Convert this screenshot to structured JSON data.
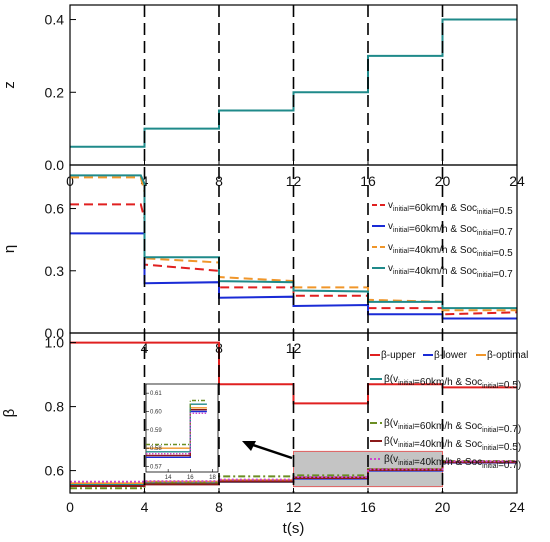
{
  "chart_data": [
    {
      "panel": "top",
      "type": "line",
      "ylabel": "z",
      "xlim": [
        0,
        24
      ],
      "ylim": [
        0,
        0.44
      ],
      "xticks": [
        "0",
        "4",
        "8",
        "12",
        "16",
        "20",
        "24"
      ],
      "yticks": [
        "0.0",
        "0.2",
        "0.4"
      ],
      "step_boundaries": [
        4,
        8,
        12,
        16,
        20
      ],
      "series": [
        {
          "color": "#1f8a8a",
          "style": "solid",
          "x": [
            0,
            4,
            4,
            8,
            8,
            12,
            12,
            16,
            16,
            20,
            20,
            24
          ],
          "y": [
            0.05,
            0.05,
            0.1,
            0.1,
            0.15,
            0.15,
            0.2,
            0.2,
            0.3,
            0.3,
            0.4,
            0.4
          ]
        }
      ]
    },
    {
      "panel": "middle",
      "type": "line",
      "ylabel": "η",
      "xlim": [
        0,
        24
      ],
      "ylim": [
        0,
        0.81
      ],
      "yticks": [
        "0.0",
        "0.3",
        "0.6"
      ],
      "legend": [
        {
          "pre": "v",
          "sub1": "initial",
          "mid": "=60km/h & Soc",
          "sub2": "initial",
          "post": "=0.5",
          "color": "#e02020",
          "style": "dashed"
        },
        {
          "pre": "v",
          "sub1": "initial",
          "mid": "=60km/h & Soc",
          "sub2": "initial",
          "post": "=0.7",
          "color": "#1a2bd6",
          "style": "solid"
        },
        {
          "pre": "v",
          "sub1": "initial",
          "mid": "=40km/h & Soc",
          "sub2": "initial",
          "post": "=0.5",
          "color": "#f0962a",
          "style": "dashed"
        },
        {
          "pre": "v",
          "sub1": "initial",
          "mid": "=40km/h & Soc",
          "sub2": "initial",
          "post": "=0.7",
          "color": "#1f8a8a",
          "style": "solid"
        }
      ],
      "series": [
        {
          "color": "#e02020",
          "style": "dashed",
          "x": [
            0,
            3.8,
            4,
            4,
            8,
            8,
            12,
            12,
            16,
            16,
            20,
            20,
            24
          ],
          "y": [
            0.62,
            0.62,
            0.55,
            0.33,
            0.3,
            0.22,
            0.22,
            0.18,
            0.18,
            0.12,
            0.12,
            0.09,
            0.1
          ]
        },
        {
          "color": "#1a2bd6",
          "style": "solid",
          "x": [
            0,
            4,
            4,
            8,
            8,
            12,
            12,
            16,
            16,
            20,
            20,
            24
          ],
          "y": [
            0.48,
            0.48,
            0.24,
            0.245,
            0.17,
            0.175,
            0.13,
            0.135,
            0.09,
            0.09,
            0.07,
            0.07
          ]
        },
        {
          "color": "#f0962a",
          "style": "dashed",
          "x": [
            0,
            3.8,
            4,
            4,
            8,
            8,
            12,
            12,
            16,
            16,
            20,
            20,
            24
          ],
          "y": [
            0.75,
            0.75,
            0.68,
            0.36,
            0.34,
            0.27,
            0.25,
            0.22,
            0.22,
            0.16,
            0.15,
            0.11,
            0.11
          ]
        },
        {
          "color": "#1f8a8a",
          "style": "solid",
          "x": [
            0,
            3.8,
            4,
            4,
            8,
            8,
            12,
            12,
            16,
            16,
            20,
            20,
            24
          ],
          "y": [
            0.76,
            0.76,
            0.72,
            0.365,
            0.365,
            0.25,
            0.245,
            0.205,
            0.2,
            0.15,
            0.15,
            0.12,
            0.12
          ]
        }
      ]
    },
    {
      "panel": "bottom",
      "type": "line",
      "ylabel": "β",
      "xlabel": "t(s)",
      "xlim": [
        0,
        24
      ],
      "ylim": [
        0.53,
        1.03
      ],
      "xticks": [
        "0",
        "4",
        "8",
        "12",
        "16",
        "20",
        "24"
      ],
      "yticks": [
        "0.6",
        "0.8",
        "1.0"
      ],
      "legend": [
        {
          "label": "β-upper",
          "color": "#e02020",
          "style": "solid"
        },
        {
          "label": "β-lower",
          "color": "#1a2bd6",
          "style": "solid"
        },
        {
          "label": "β-optimal",
          "color": "#f0962a",
          "style": "solid"
        },
        {
          "pre": "β(v",
          "sub1": "initial",
          "mid": "=60km/h & Soc",
          "sub2": "initial",
          "post": "=0.5)",
          "color": "#1f8a8a",
          "style": "solid"
        },
        {
          "pre": "β(v",
          "sub1": "initial",
          "mid": "=60km/h & Soc",
          "sub2": "initial",
          "post": "=0.7)",
          "color": "#6b8e23",
          "style": "dashdot"
        },
        {
          "pre": "β(v",
          "sub1": "initial",
          "mid": "=40km/h & Soc",
          "sub2": "initial",
          "post": "=0.5)",
          "color": "#8b1a1a",
          "style": "solid"
        },
        {
          "pre": "β(v",
          "sub1": "initial",
          "mid": "=40km/h & Soc",
          "sub2": "initial",
          "post": "=0.7)",
          "color": "#cc44cc",
          "style": "dotted"
        }
      ],
      "series": [
        {
          "color": "#e02020",
          "style": "solid",
          "x": [
            0,
            8,
            8,
            12,
            12,
            16,
            16,
            20,
            20,
            24
          ],
          "y": [
            1.0,
            1.0,
            0.87,
            0.87,
            0.81,
            0.81,
            0.87,
            0.87,
            0.86,
            0.86
          ]
        },
        {
          "color": "#1a2bd6",
          "style": "solid",
          "x": [
            0,
            4,
            4,
            8,
            8,
            12,
            12,
            16,
            16,
            20,
            20,
            24
          ],
          "y": [
            0.553,
            0.553,
            0.558,
            0.558,
            0.565,
            0.565,
            0.575,
            0.575,
            0.6,
            0.6,
            0.625,
            0.625
          ]
        },
        {
          "color": "#f0962a",
          "style": "solid",
          "x": [
            0,
            4,
            4,
            8,
            8,
            12,
            12,
            16,
            16,
            20,
            20,
            24
          ],
          "y": [
            0.56,
            0.56,
            0.565,
            0.565,
            0.57,
            0.57,
            0.58,
            0.58,
            0.605,
            0.605,
            0.628,
            0.628
          ]
        },
        {
          "color": "#1f8a8a",
          "style": "solid",
          "x": [
            0,
            4,
            4,
            8,
            8,
            12,
            12,
            16,
            16,
            20,
            20,
            24
          ],
          "y": [
            0.555,
            0.555,
            0.56,
            0.56,
            0.565,
            0.565,
            0.578,
            0.578,
            0.603,
            0.603,
            0.627,
            0.627
          ]
        },
        {
          "color": "#6b8e23",
          "style": "dashdot",
          "x": [
            0,
            4,
            4,
            8,
            8,
            12,
            12,
            16,
            16,
            20,
            20,
            24
          ],
          "y": [
            0.545,
            0.545,
            0.562,
            0.562,
            0.582,
            0.582,
            0.585,
            0.585,
            0.605,
            0.605,
            0.63,
            0.63
          ]
        },
        {
          "color": "#8b1a1a",
          "style": "solid",
          "x": [
            0,
            4,
            4,
            8,
            8,
            12,
            12,
            16,
            16,
            20,
            20,
            24
          ],
          "y": [
            0.552,
            0.552,
            0.557,
            0.557,
            0.566,
            0.566,
            0.577,
            0.577,
            0.602,
            0.602,
            0.626,
            0.626
          ]
        },
        {
          "color": "#cc44cc",
          "style": "dotted",
          "x": [
            0,
            4,
            4,
            8,
            8,
            12,
            12,
            16,
            16,
            20,
            20,
            24
          ],
          "y": [
            0.565,
            0.565,
            0.567,
            0.567,
            0.572,
            0.572,
            0.58,
            0.58,
            0.604,
            0.604,
            0.629,
            0.629
          ]
        }
      ],
      "highlight_region": {
        "x": [
          12,
          20
        ],
        "y": [
          0.55,
          0.66
        ]
      },
      "inset": {
        "xlim": [
          12,
          18.5
        ],
        "ylim": [
          0.567,
          0.615
        ],
        "xticks": [
          "14",
          "16",
          "18"
        ],
        "yticks": [
          "0.57",
          "0.58",
          "0.59",
          "0.60",
          "0.61"
        ],
        "series": [
          {
            "color": "#1a2bd6",
            "style": "solid",
            "x": [
              12,
              16,
              16,
              17.5
            ],
            "y": [
              0.575,
              0.575,
              0.6,
              0.6
            ]
          },
          {
            "color": "#8b1a1a",
            "style": "solid",
            "x": [
              12,
              16,
              16,
              17.5
            ],
            "y": [
              0.576,
              0.576,
              0.601,
              0.601
            ]
          },
          {
            "color": "#f0962a",
            "style": "solid",
            "x": [
              12,
              16,
              16,
              17.5
            ],
            "y": [
              0.58,
              0.58,
              0.602,
              0.602
            ]
          },
          {
            "color": "#1f8a8a",
            "style": "solid",
            "x": [
              12,
              16,
              16,
              17.5
            ],
            "y": [
              0.578,
              0.578,
              0.604,
              0.604
            ]
          },
          {
            "color": "#6b8e23",
            "style": "dashdot",
            "x": [
              12,
              16,
              16,
              17.5
            ],
            "y": [
              0.582,
              0.582,
              0.606,
              0.606
            ]
          },
          {
            "color": "#cc44cc",
            "style": "dotted",
            "x": [
              12,
              16,
              16,
              17.5
            ],
            "y": [
              0.577,
              0.577,
              0.599,
              0.599
            ]
          }
        ]
      }
    }
  ]
}
